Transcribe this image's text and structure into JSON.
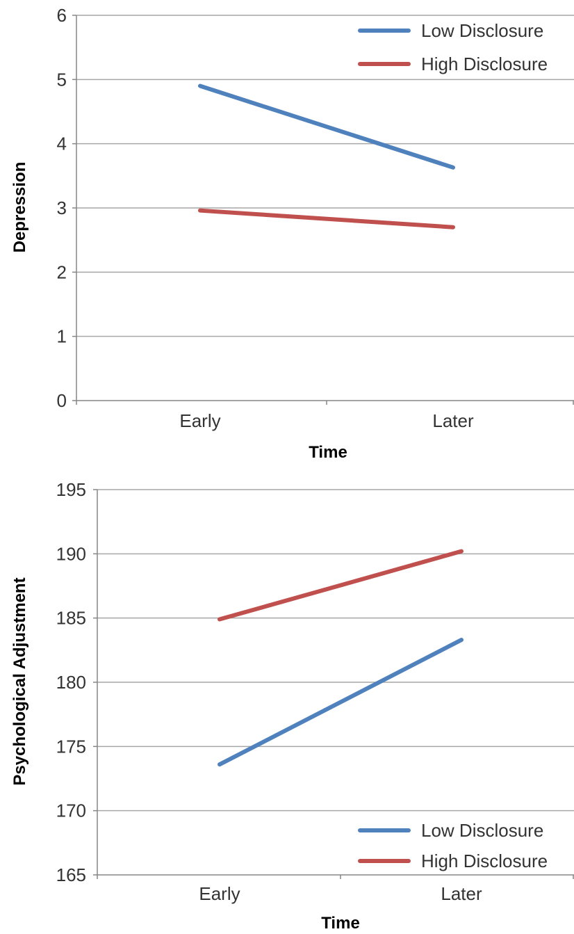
{
  "chart_data": [
    {
      "type": "line",
      "categories": [
        "Early",
        "Later"
      ],
      "series": [
        {
          "name": "Low Disclosure",
          "values": [
            4.9,
            3.63
          ],
          "color": "#4f81bd"
        },
        {
          "name": "High Disclosure",
          "values": [
            2.96,
            2.7
          ],
          "color": "#c0504d"
        }
      ],
      "xlabel": "Time",
      "ylabel": "Depression",
      "ylim": [
        0,
        6
      ],
      "yticks": [
        "0",
        "1",
        "2",
        "3",
        "4",
        "5",
        "6"
      ],
      "grid": true,
      "legend_position": "top-right"
    },
    {
      "type": "line",
      "categories": [
        "Early",
        "Later"
      ],
      "series": [
        {
          "name": "Low Disclosure",
          "values": [
            173.6,
            183.3
          ],
          "color": "#4f81bd"
        },
        {
          "name": "High Disclosure",
          "values": [
            184.9,
            190.2
          ],
          "color": "#c0504d"
        }
      ],
      "xlabel": "Time",
      "ylabel": "Psychological Adjustment",
      "ylim": [
        165,
        195
      ],
      "yticks": [
        "165",
        "170",
        "175",
        "180",
        "185",
        "190",
        "195"
      ],
      "grid": true,
      "legend_position": "bottom-right"
    }
  ]
}
